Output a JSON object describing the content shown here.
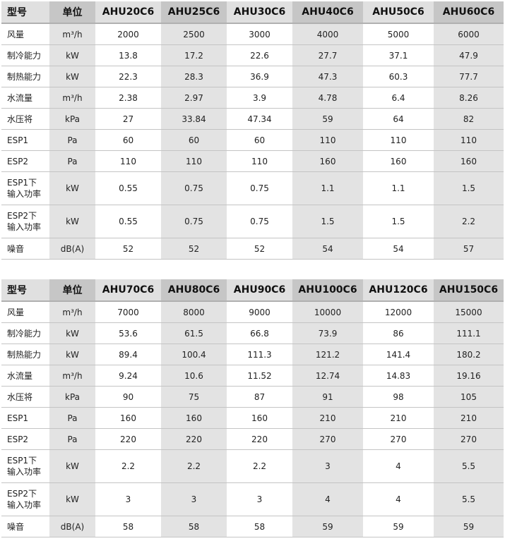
{
  "tables": [
    {
      "header": [
        "型号",
        "单位",
        "AHU20C6",
        "AHU25C6",
        "AHU30C6",
        "AHU40C6",
        "AHU50C6",
        "AHU60C6"
      ],
      "rows": [
        [
          "风量",
          "m³/h",
          "2000",
          "2500",
          "3000",
          "4000",
          "5000",
          "6000"
        ],
        [
          "制冷能力",
          "kW",
          "13.8",
          "17.2",
          "22.6",
          "27.7",
          "37.1",
          "47.9"
        ],
        [
          "制热能力",
          "kW",
          "22.3",
          "28.3",
          "36.9",
          "47.3",
          "60.3",
          "77.7"
        ],
        [
          "水流量",
          "m³/h",
          "2.38",
          "2.97",
          "3.9",
          "4.78",
          "6.4",
          "8.26"
        ],
        [
          "水压将",
          "kPa",
          "27",
          "33.84",
          "47.34",
          "59",
          "64",
          "82"
        ],
        [
          "ESP1",
          "Pa",
          "60",
          "60",
          "60",
          "110",
          "110",
          "110"
        ],
        [
          "ESP2",
          "Pa",
          "110",
          "110",
          "110",
          "160",
          "160",
          "160"
        ],
        [
          "ESP1下\n输入功率",
          "kW",
          "0.55",
          "0.75",
          "0.75",
          "1.1",
          "1.1",
          "1.5"
        ],
        [
          "ESP2下\n输入功率",
          "kW",
          "0.55",
          "0.75",
          "0.75",
          "1.5",
          "1.5",
          "2.2"
        ],
        [
          "噪音",
          "dB(A)",
          "52",
          "52",
          "52",
          "54",
          "54",
          "57"
        ]
      ]
    },
    {
      "header": [
        "型号",
        "单位",
        "AHU70C6",
        "AHU80C6",
        "AHU90C6",
        "AHU100C6",
        "AHU120C6",
        "AHU150C6"
      ],
      "rows": [
        [
          "风量",
          "m³/h",
          "7000",
          "8000",
          "9000",
          "10000",
          "12000",
          "15000"
        ],
        [
          "制冷能力",
          "kW",
          "53.6",
          "61.5",
          "66.8",
          "73.9",
          "86",
          "111.1"
        ],
        [
          "制热能力",
          "kW",
          "89.4",
          "100.4",
          "111.3",
          "121.2",
          "141.4",
          "180.2"
        ],
        [
          "水流量",
          "m³/h",
          "9.24",
          "10.6",
          "11.52",
          "12.74",
          "14.83",
          "19.16"
        ],
        [
          "水压将",
          "kPa",
          "90",
          "75",
          "87",
          "91",
          "98",
          "105"
        ],
        [
          "ESP1",
          "Pa",
          "160",
          "160",
          "160",
          "210",
          "210",
          "210"
        ],
        [
          "ESP2",
          "Pa",
          "220",
          "220",
          "220",
          "270",
          "270",
          "270"
        ],
        [
          "ESP1下\n输入功率",
          "kW",
          "2.2",
          "2.2",
          "2.2",
          "3",
          "4",
          "5.5"
        ],
        [
          "ESP2下\n输入功率",
          "kW",
          "3",
          "3",
          "3",
          "4",
          "4",
          "5.5"
        ],
        [
          "噪音",
          "dB(A)",
          "58",
          "58",
          "58",
          "59",
          "59",
          "59"
        ]
      ]
    }
  ]
}
